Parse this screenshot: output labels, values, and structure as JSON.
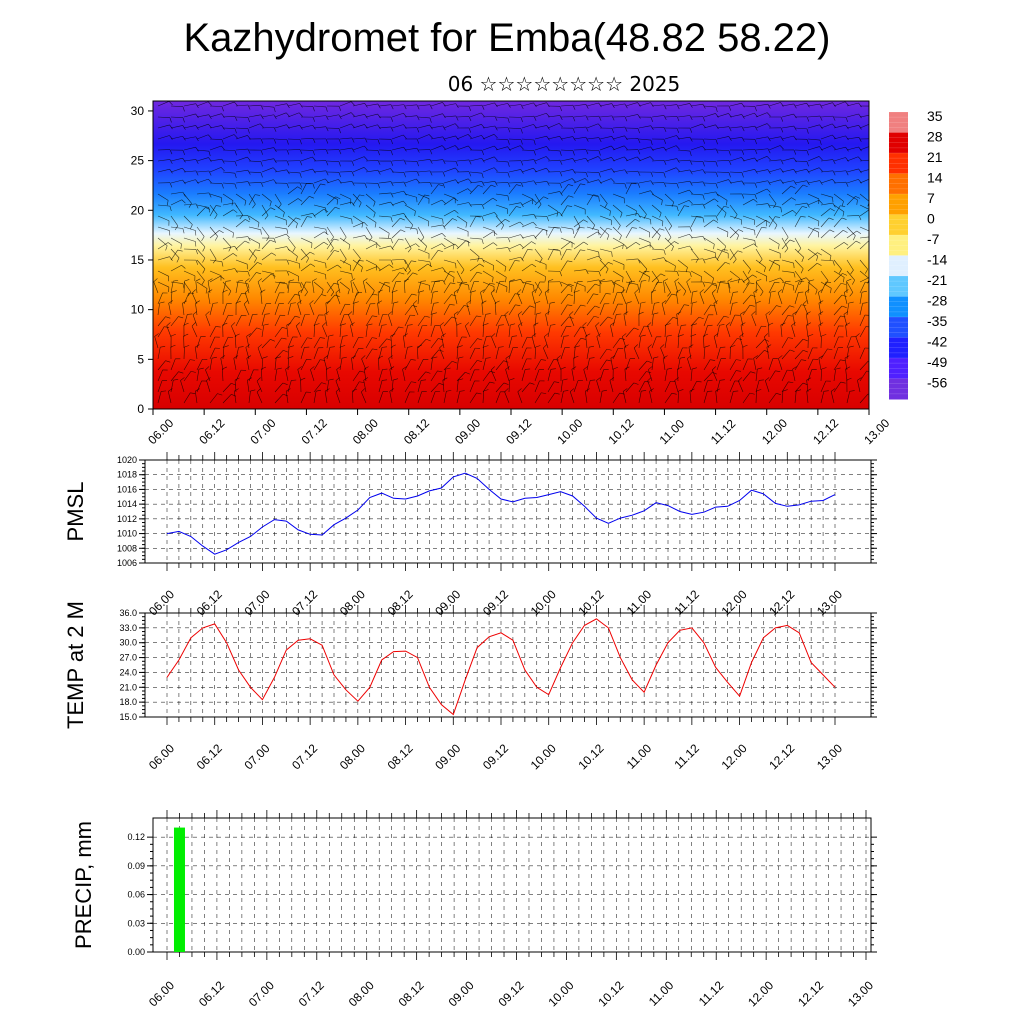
{
  "header": {
    "title": "Kazhydromet for Emba(48.82 58.22)",
    "subtitle": "06 ☆☆☆☆☆☆☆☆ 2025"
  },
  "colors": {
    "pmsl_line": "#0000ee",
    "temp_line": "#ee0000",
    "precip_bar": "#00ee00",
    "grid": "#000000"
  },
  "x_tick_labels": [
    "06.00",
    "06.12",
    "07.00",
    "07.12",
    "08.00",
    "08.12",
    "09.00",
    "09.12",
    "10.00",
    "10.12",
    "11.00",
    "11.12",
    "12.00",
    "12.12",
    "13.00"
  ],
  "chart_data": [
    {
      "type": "heatmap",
      "panel": "vertical cross-section",
      "y_ticks": [
        "0",
        "5",
        "10",
        "15",
        "20",
        "25",
        "30"
      ],
      "ylim": [
        0,
        31
      ],
      "colorbar_labels": [
        "35",
        "28",
        "21",
        "14",
        "7",
        "0",
        "-7",
        "-14",
        "-21",
        "-28",
        "-35",
        "-42",
        "-49",
        "-56"
      ],
      "colorscale": [
        "#f08080",
        "#e00000",
        "#ff3000",
        "#ff7000",
        "#ffa000",
        "#ffd030",
        "#fff080",
        "#e0f0ff",
        "#60c8ff",
        "#1090ff",
        "#2050ff",
        "#2020ff",
        "#5020ff",
        "#7030e0"
      ],
      "wind_barbs": true
    },
    {
      "type": "line",
      "ylabel": "PMSL",
      "ylim": [
        1006,
        1020
      ],
      "y_ticks": [
        "1006",
        "1008",
        "1010",
        "1012",
        "1014",
        "1016",
        "1018",
        "1020"
      ],
      "series": [
        {
          "values": [
            1010.0,
            1010.3,
            1009.6,
            1008.3,
            1007.2,
            1007.8,
            1008.8,
            1009.6,
            1010.9,
            1011.9,
            1011.7,
            1010.5,
            1009.9,
            1009.8,
            1011.2,
            1012.1,
            1013.2,
            1014.9,
            1015.5,
            1014.8,
            1014.7,
            1015.1,
            1015.8,
            1016.2,
            1017.7,
            1018.2,
            1017.5,
            1016.0,
            1014.7,
            1014.3,
            1014.8,
            1014.9,
            1015.3,
            1015.7,
            1015.1,
            1013.7,
            1012.1,
            1011.4,
            1012.1,
            1012.5,
            1013.1,
            1014.2,
            1013.8,
            1013.0,
            1012.6,
            1012.9,
            1013.6,
            1013.7,
            1014.5,
            1015.9,
            1015.4,
            1014.1,
            1013.7,
            1013.9,
            1014.4,
            1014.5,
            1015.3
          ]
        }
      ],
      "x_start": 0,
      "x_step_hours": 3
    },
    {
      "type": "line",
      "ylabel": "TEMP at 2 M",
      "ylim": [
        15.0,
        36.0
      ],
      "y_ticks": [
        "15.0",
        "18.0",
        "21.0",
        "24.0",
        "27.0",
        "30.0",
        "33.0",
        "36.0"
      ],
      "series": [
        {
          "values": [
            23.0,
            26.5,
            31.0,
            33.0,
            33.8,
            30.0,
            24.5,
            21.0,
            18.5,
            23.0,
            28.5,
            30.5,
            30.8,
            29.5,
            23.5,
            20.5,
            18.2,
            21.0,
            26.5,
            28.2,
            28.3,
            27.0,
            21.0,
            17.5,
            15.5,
            22.5,
            29.0,
            31.2,
            32.0,
            30.5,
            24.5,
            21.0,
            19.5,
            25.0,
            30.0,
            33.5,
            34.8,
            33.0,
            27.0,
            22.5,
            20.0,
            25.5,
            30.0,
            32.5,
            33.0,
            30.0,
            25.0,
            22.0,
            19.2,
            26.0,
            31.0,
            33.0,
            33.5,
            32.0,
            26.0,
            23.5,
            21.0
          ]
        }
      ],
      "x_start": 0,
      "x_step_hours": 3
    },
    {
      "type": "bar",
      "ylabel": "PRECIP, mm",
      "ylim": [
        0,
        0.14
      ],
      "y_ticks": [
        "0.00",
        "0.03",
        "0.06",
        "0.09",
        "0.12"
      ],
      "bars": [
        {
          "x_hours": 3,
          "value": 0.13
        }
      ]
    }
  ]
}
